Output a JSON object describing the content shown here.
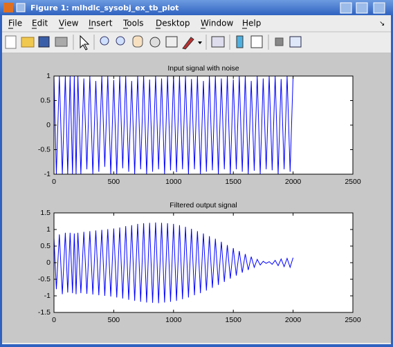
{
  "window": {
    "title": "Figure 1: mlhdlc_sysobj_ex_tb_plot",
    "menu": [
      "File",
      "Edit",
      "View",
      "Insert",
      "Tools",
      "Desktop",
      "Window",
      "Help"
    ]
  },
  "chart_data": [
    {
      "type": "line",
      "title": "Input signal with noise",
      "color": "#0000ff",
      "xlim": [
        0,
        2500
      ],
      "xticks": [
        0,
        500,
        1000,
        1500,
        2000,
        2500
      ],
      "ylim": [
        -1,
        1
      ],
      "yticks": [
        -1,
        -0.5,
        0,
        0.5,
        1
      ],
      "x": [
        0,
        20,
        45,
        70,
        95,
        115,
        135,
        155,
        170,
        185,
        200,
        225,
        250,
        275,
        300,
        325,
        350,
        375,
        400,
        425,
        450,
        475,
        500,
        525,
        550,
        575,
        600,
        625,
        650,
        675,
        700,
        725,
        750,
        775,
        800,
        825,
        850,
        875,
        900,
        925,
        950,
        975,
        1000,
        1025,
        1050,
        1075,
        1100,
        1125,
        1150,
        1175,
        1200,
        1225,
        1250,
        1275,
        1300,
        1325,
        1350,
        1375,
        1400,
        1425,
        1450,
        1475,
        1500,
        1525,
        1550,
        1575,
        1600,
        1625,
        1650,
        1675,
        1700,
        1725,
        1750,
        1775,
        1800,
        1825,
        1850,
        1875,
        1900,
        1925,
        1950,
        1975,
        2000
      ],
      "values": [
        1,
        -1,
        1,
        -1,
        1,
        -1,
        1,
        -1,
        1,
        -1,
        1,
        -1,
        0.95,
        -0.9,
        1,
        -1,
        0.9,
        -0.95,
        1,
        -0.85,
        1,
        -1,
        0.92,
        -1,
        1,
        -0.88,
        1,
        -0.95,
        0.9,
        -1,
        1,
        -0.9,
        1,
        -1,
        0.93,
        -0.95,
        1,
        -0.9,
        0.95,
        -1,
        1,
        -0.92,
        1,
        -0.96,
        1,
        -0.9,
        1,
        -1,
        0.94,
        -0.9,
        1,
        -1,
        0.9,
        -0.95,
        1,
        -0.92,
        1,
        -1,
        0.95,
        -0.9,
        1,
        -1,
        0.93,
        -0.9,
        1,
        -0.95,
        1,
        -1,
        0.9,
        -0.93,
        1,
        -1,
        0.95,
        -0.9,
        1,
        -0.92,
        1,
        -1,
        0.94,
        -0.9,
        1,
        -0.95,
        1
      ]
    },
    {
      "type": "line",
      "title": "Filtered output signal",
      "color": "#0000ff",
      "xlim": [
        0,
        2500
      ],
      "xticks": [
        0,
        500,
        1000,
        1500,
        2000,
        2500
      ],
      "ylim": [
        -1.5,
        1.5
      ],
      "yticks": [
        -1.5,
        -1,
        -0.5,
        0,
        0.5,
        1,
        1.5
      ],
      "x": [
        0,
        20,
        45,
        70,
        95,
        115,
        135,
        155,
        170,
        185,
        200,
        225,
        250,
        275,
        300,
        325,
        350,
        375,
        400,
        425,
        450,
        475,
        500,
        525,
        550,
        575,
        600,
        625,
        650,
        675,
        700,
        725,
        750,
        775,
        800,
        825,
        850,
        875,
        900,
        925,
        950,
        975,
        1000,
        1025,
        1050,
        1075,
        1100,
        1125,
        1150,
        1175,
        1200,
        1225,
        1250,
        1275,
        1300,
        1325,
        1350,
        1375,
        1400,
        1425,
        1450,
        1475,
        1500,
        1525,
        1550,
        1575,
        1600,
        1625,
        1650,
        1675,
        1700,
        1725,
        1750,
        1775,
        1800,
        1825,
        1850,
        1875,
        1900,
        1925,
        1950,
        1975,
        2000
      ],
      "values": [
        0.75,
        -0.8,
        0.85,
        -0.95,
        0.9,
        -0.9,
        0.9,
        -0.92,
        0.88,
        -0.95,
        0.9,
        -0.92,
        0.93,
        -0.94,
        0.95,
        -0.96,
        0.97,
        -0.98,
        0.99,
        -1.0,
        1.01,
        -1.02,
        1.03,
        -1.05,
        1.06,
        -1.08,
        1.1,
        -1.12,
        1.13,
        -1.15,
        1.17,
        -1.18,
        1.19,
        -1.2,
        1.2,
        -1.21,
        1.21,
        -1.22,
        1.2,
        -1.2,
        1.19,
        -1.18,
        1.17,
        -1.15,
        1.13,
        -1.1,
        1.08,
        -1.05,
        1.02,
        -0.98,
        0.95,
        -0.92,
        0.88,
        -0.84,
        0.8,
        -0.76,
        0.72,
        -0.67,
        0.63,
        -0.58,
        0.53,
        -0.48,
        0.44,
        -0.39,
        0.35,
        -0.3,
        0.26,
        -0.22,
        0.18,
        -0.14,
        0.1,
        -0.07,
        0.04,
        -0.02,
        0.03,
        -0.05,
        0.07,
        -0.09,
        0.11,
        -0.12,
        0.13,
        -0.14,
        0.15
      ]
    }
  ]
}
